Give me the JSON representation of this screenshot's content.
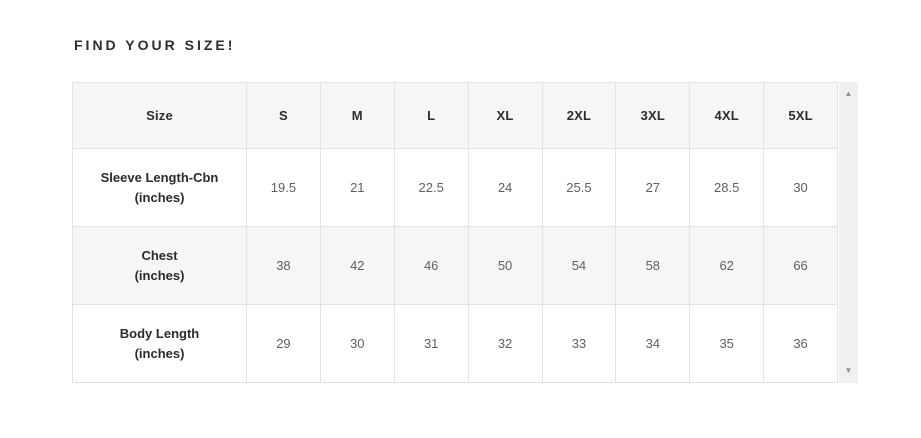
{
  "heading": {
    "text": "FIND YOUR SIZE!"
  },
  "size_chart": {
    "columns": [
      "Size",
      "S",
      "M",
      "L",
      "XL",
      "2XL",
      "3XL",
      "4XL",
      "5XL"
    ],
    "rows": [
      {
        "label": "Sleeve Length-Cbn",
        "unit": "(inches)",
        "values": [
          "19.5",
          "21",
          "22.5",
          "24",
          "25.5",
          "27",
          "28.5",
          "30"
        ]
      },
      {
        "label": "Chest",
        "unit": "(inches)",
        "values": [
          "38",
          "42",
          "46",
          "50",
          "54",
          "58",
          "62",
          "66"
        ]
      },
      {
        "label": "Body Length",
        "unit": "(inches)",
        "values": [
          "29",
          "30",
          "31",
          "32",
          "33",
          "34",
          "35",
          "36"
        ]
      }
    ]
  },
  "scrollbar": {
    "up_icon": "▲",
    "down_icon": "▼"
  },
  "colors": {
    "header_bg": "#f7f6f5",
    "alt_row_bg": "#f7f6f5",
    "border": "#e4e3e2",
    "heading_text": "#2d2d2d",
    "label_text": "#2b2b2b",
    "value_text": "#606060",
    "scrollbar_track": "#f1f0ee",
    "scrollbar_arrow": "#8f8f8f"
  }
}
